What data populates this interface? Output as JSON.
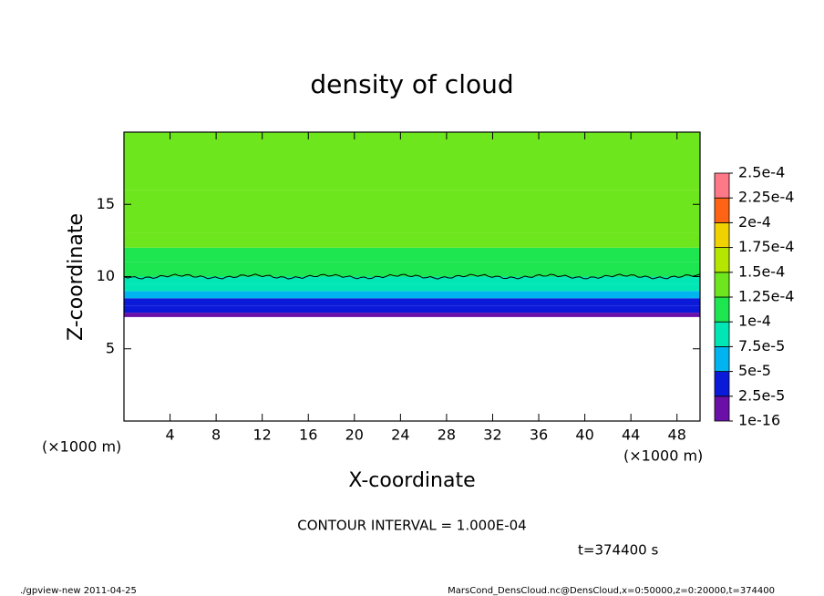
{
  "chart_data": {
    "type": "contour",
    "title": "density of cloud",
    "xlabel": "X-coordinate",
    "ylabel": "Z-coordinate",
    "x_unit": "(×1000 m)",
    "xlim": [
      0,
      50
    ],
    "xticks": [
      4,
      8,
      12,
      16,
      20,
      24,
      28,
      32,
      36,
      40,
      44,
      48
    ],
    "ylim": [
      0,
      20
    ],
    "yticks": [
      5,
      10,
      15
    ],
    "profile": {
      "z_edges": [
        7.2,
        7.5,
        8,
        8.5,
        9,
        9.5,
        10,
        11,
        12,
        13,
        16,
        20
      ],
      "values": [
        1.2e-05,
        2.6e-05,
        4e-05,
        6e-05,
        8e-05,
        9.2e-05,
        0.000105,
        0.000115,
        0.000128,
        0.000138,
        0.00013
      ]
    },
    "contour_level": 0.0001,
    "contour_interval_text": "CONTOUR INTERVAL = 1.000E-04",
    "colorbar": {
      "levels": [
        {
          "value": 1e-16,
          "label": "1e-16"
        },
        {
          "value": 2.5e-05,
          "label": "2.5e-5"
        },
        {
          "value": 5e-05,
          "label": "5e-5"
        },
        {
          "value": 7.5e-05,
          "label": "7.5e-5"
        },
        {
          "value": 0.0001,
          "label": "1e-4"
        },
        {
          "value": 0.000125,
          "label": "1.25e-4"
        },
        {
          "value": 0.00015,
          "label": "1.5e-4"
        },
        {
          "value": 0.000175,
          "label": "1.75e-4"
        },
        {
          "value": 0.0002,
          "label": "2e-4"
        },
        {
          "value": 0.000225,
          "label": "2.25e-4"
        },
        {
          "value": 0.00025,
          "label": "2.5e-4"
        }
      ],
      "colors": [
        "#6a10a8",
        "#0a1ad8",
        "#00b4f0",
        "#00e6b4",
        "#1ee650",
        "#6ee61e",
        "#b4e600",
        "#f0d200",
        "#ff6414",
        "#ff7888"
      ]
    },
    "time_label": "t=374400 s",
    "footer_left": "./gpview-new  2011-04-25",
    "footer_right": "MarsCond_DensCloud.nc@DensCloud,x=0:50000,z=0:20000,t=374400"
  }
}
